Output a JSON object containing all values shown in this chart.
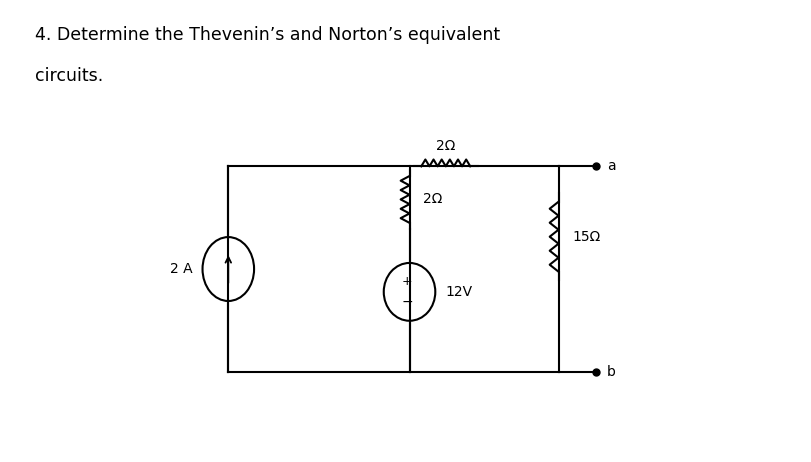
{
  "title_line1": "4. Determine the Thevenin’s and Norton’s equivalent",
  "title_line2": "circuits.",
  "bg_color": "#ffffff",
  "panel_color": "#ffffff",
  "circuit": {
    "current_source_label": "2 A",
    "resistor1_label": "2Ω",
    "resistor2_label": "2Ω",
    "resistor3_label": "15Ω",
    "voltage_source_label": "12V",
    "terminal_a": "a",
    "terminal_b": "b"
  }
}
